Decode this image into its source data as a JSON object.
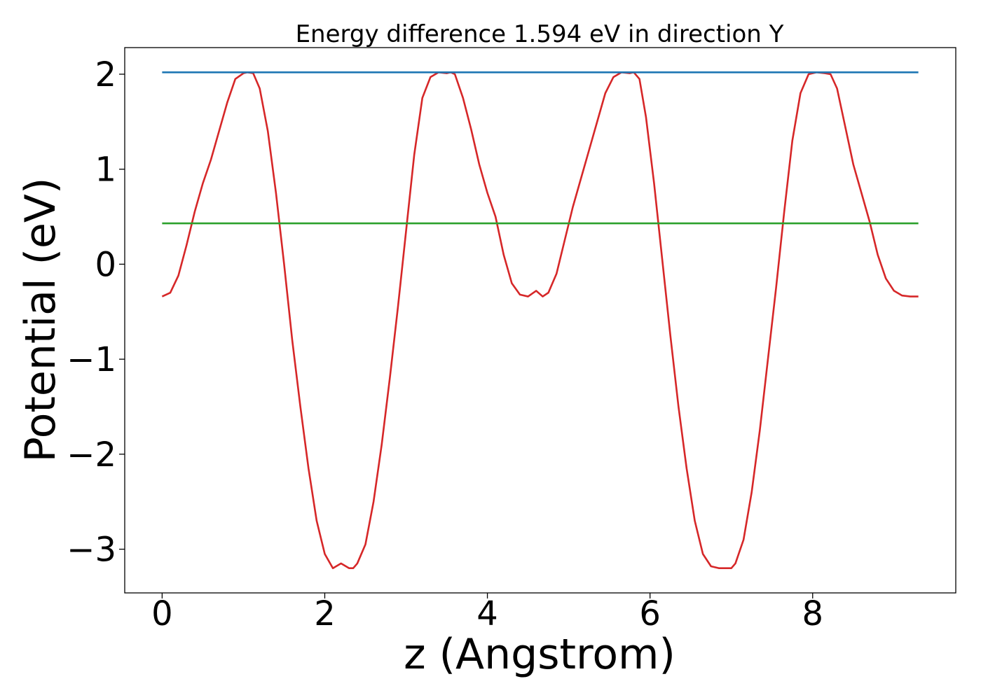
{
  "chart_data": {
    "type": "line",
    "title": "Energy difference 1.594 eV in direction Y",
    "xlabel": "z (Angstrom)",
    "ylabel": "Potential (eV)",
    "xlim": [
      -0.46,
      9.76
    ],
    "ylim": [
      -3.46,
      2.28
    ],
    "grid": false,
    "x_ticks": [
      0,
      2,
      4,
      6,
      8
    ],
    "x_tick_labels": [
      "0",
      "2",
      "4",
      "6",
      "8"
    ],
    "y_ticks": [
      2,
      1,
      0,
      -1,
      -2,
      -3
    ],
    "y_tick_labels": [
      "2",
      "1",
      "0",
      "−1",
      "−2",
      "−3"
    ],
    "series": [
      {
        "color": "#d62728",
        "x": [
          0,
          0.1,
          0.2,
          0.3,
          0.4,
          0.5,
          0.6,
          0.7,
          0.8,
          0.9,
          1.0,
          1.05,
          1.12,
          1.2,
          1.3,
          1.4,
          1.5,
          1.6,
          1.7,
          1.8,
          1.9,
          2.0,
          2.1,
          2.2,
          2.3,
          2.35,
          2.4,
          2.5,
          2.6,
          2.7,
          2.8,
          2.9,
          3.0,
          3.1,
          3.2,
          3.3,
          3.4,
          3.5,
          3.55,
          3.6,
          3.7,
          3.8,
          3.9,
          4.0,
          4.1,
          4.2,
          4.3,
          4.4,
          4.5,
          4.6,
          4.68,
          4.75,
          4.85,
          4.95,
          5.05,
          5.15,
          5.25,
          5.35,
          5.45,
          5.55,
          5.65,
          5.75,
          5.8,
          5.87,
          5.95,
          6.05,
          6.15,
          6.25,
          6.35,
          6.45,
          6.55,
          6.65,
          6.75,
          6.85,
          6.95,
          7.0,
          7.05,
          7.15,
          7.25,
          7.35,
          7.45,
          7.55,
          7.65,
          7.75,
          7.85,
          7.95,
          8.05,
          8.15,
          8.22,
          8.3,
          8.4,
          8.5,
          8.6,
          8.7,
          8.8,
          8.9,
          9.0,
          9.1,
          9.2,
          9.3
        ],
        "y": [
          -0.34,
          -0.3,
          -0.12,
          0.2,
          0.55,
          0.85,
          1.1,
          1.4,
          1.7,
          1.95,
          2.01,
          2.02,
          2.01,
          1.85,
          1.4,
          0.75,
          0.0,
          -0.8,
          -1.5,
          -2.15,
          -2.7,
          -3.05,
          -3.2,
          -3.15,
          -3.2,
          -3.2,
          -3.15,
          -2.95,
          -2.5,
          -1.9,
          -1.2,
          -0.45,
          0.35,
          1.15,
          1.75,
          1.97,
          2.02,
          2.01,
          2.02,
          2.0,
          1.75,
          1.42,
          1.05,
          0.75,
          0.5,
          0.1,
          -0.2,
          -0.32,
          -0.34,
          -0.28,
          -0.34,
          -0.3,
          -0.1,
          0.25,
          0.6,
          0.9,
          1.2,
          1.5,
          1.8,
          1.97,
          2.02,
          2.01,
          2.02,
          1.95,
          1.55,
          0.85,
          0.05,
          -0.75,
          -1.5,
          -2.15,
          -2.7,
          -3.05,
          -3.18,
          -3.2,
          -3.2,
          -3.2,
          -3.15,
          -2.9,
          -2.4,
          -1.75,
          -1.0,
          -0.25,
          0.55,
          1.3,
          1.8,
          2.0,
          2.02,
          2.01,
          2.0,
          1.85,
          1.45,
          1.05,
          0.75,
          0.45,
          0.1,
          -0.15,
          -0.28,
          -0.33,
          -0.34,
          -0.34
        ]
      },
      {
        "color": "#1f77b4",
        "x": [
          0,
          9.3
        ],
        "y": [
          2.02,
          2.02
        ]
      },
      {
        "color": "#2ca02c",
        "x": [
          0,
          9.3
        ],
        "y": [
          0.43,
          0.43
        ]
      }
    ]
  }
}
